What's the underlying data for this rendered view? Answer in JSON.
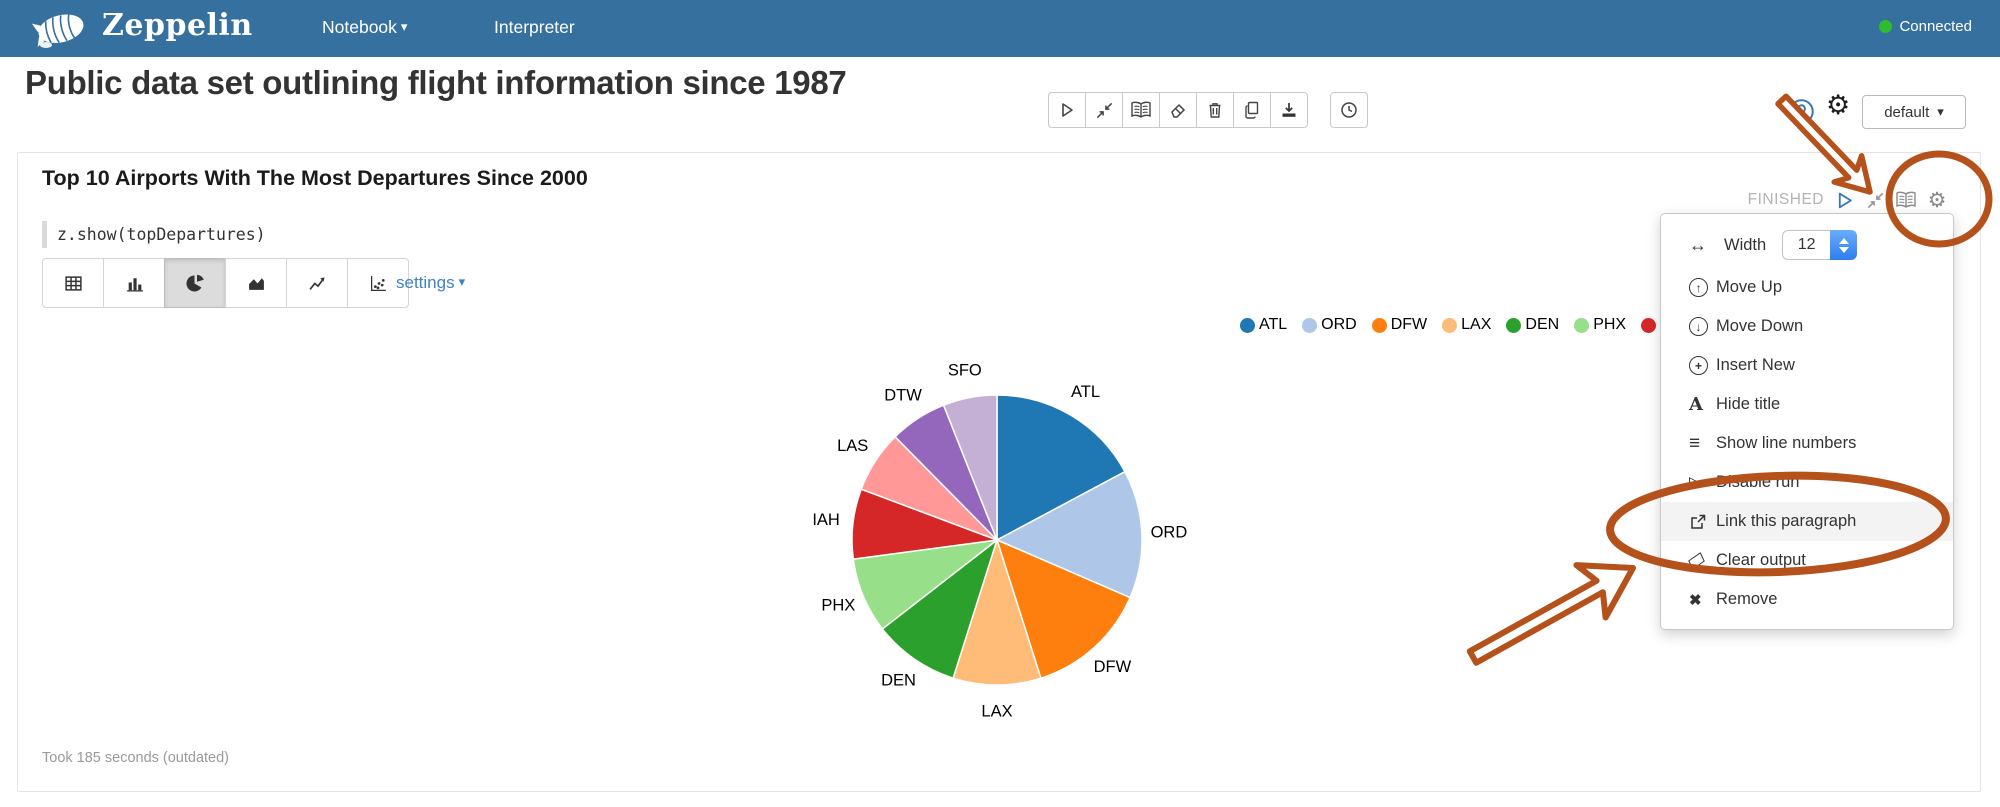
{
  "navbar": {
    "brand": "Zeppelin",
    "menu_notebook": "Notebook",
    "menu_interpreter": "Interpreter",
    "connected_label": "Connected",
    "connected_color": "#2ebd2e"
  },
  "note": {
    "title": "Public data set outlining flight information since 1987",
    "interpreter_selector": "default"
  },
  "paragraph": {
    "title": "Top 10 Airports With The Most Departures Since 2000",
    "code": "z.show(topDepartures)",
    "status": "FINISHED",
    "settings_label": "settings",
    "footer": "Took 185 seconds (outdated)"
  },
  "settings_menu": {
    "width_label": "Width",
    "width_value": "12",
    "items": [
      {
        "icon": "arrow-up-circle-icon",
        "label": "Move Up"
      },
      {
        "icon": "arrow-down-circle-icon",
        "label": "Move Down"
      },
      {
        "icon": "plus-circle-icon",
        "label": "Insert New"
      },
      {
        "icon": "letter-a-icon",
        "label": "Hide title"
      },
      {
        "icon": "list-numbers-icon",
        "label": "Show line numbers"
      },
      {
        "icon": "play-outline-icon",
        "label": "Disable run"
      },
      {
        "icon": "external-link-icon",
        "label": "Link this paragraph",
        "highlighted": true
      },
      {
        "icon": "eraser-icon",
        "label": "Clear output"
      },
      {
        "icon": "x-icon",
        "label": "Remove"
      }
    ]
  },
  "glyphs": {
    "caret_down": "▾",
    "gear": "⚙",
    "width_arrows": "↔",
    "up_arrow": "↑",
    "down_arrow": "↓",
    "plus": "+",
    "letter_a": "A",
    "list_lines": "≡",
    "play_outline": "▷",
    "x_bold": "✖"
  },
  "chart_data": {
    "type": "pie",
    "title": "Top 10 Airports With The Most Departures Since 2000",
    "categories": [
      "ATL",
      "ORD",
      "DFW",
      "LAX",
      "DEN",
      "PHX",
      "IAH",
      "LAS",
      "DTW",
      "SFO"
    ],
    "values": [
      17.2,
      14.3,
      13.6,
      9.8,
      9.6,
      8.4,
      7.8,
      6.9,
      6.4,
      6.0
    ],
    "values_are": "percent share estimated from slice angles",
    "colors": [
      "#1f77b4",
      "#aec7e8",
      "#ff7f0e",
      "#ffbb78",
      "#2ca02c",
      "#98df8a",
      "#d62728",
      "#ff9896",
      "#9467bd",
      "#c5b0d5"
    ],
    "start_angle_deg": 0,
    "direction": "clockwise",
    "legend_position": "top-right",
    "legend_visible": [
      "ATL",
      "ORD",
      "DFW",
      "LAX",
      "DEN",
      "PHX",
      "IAH"
    ]
  },
  "annotations": {
    "color": "#b5521c"
  }
}
